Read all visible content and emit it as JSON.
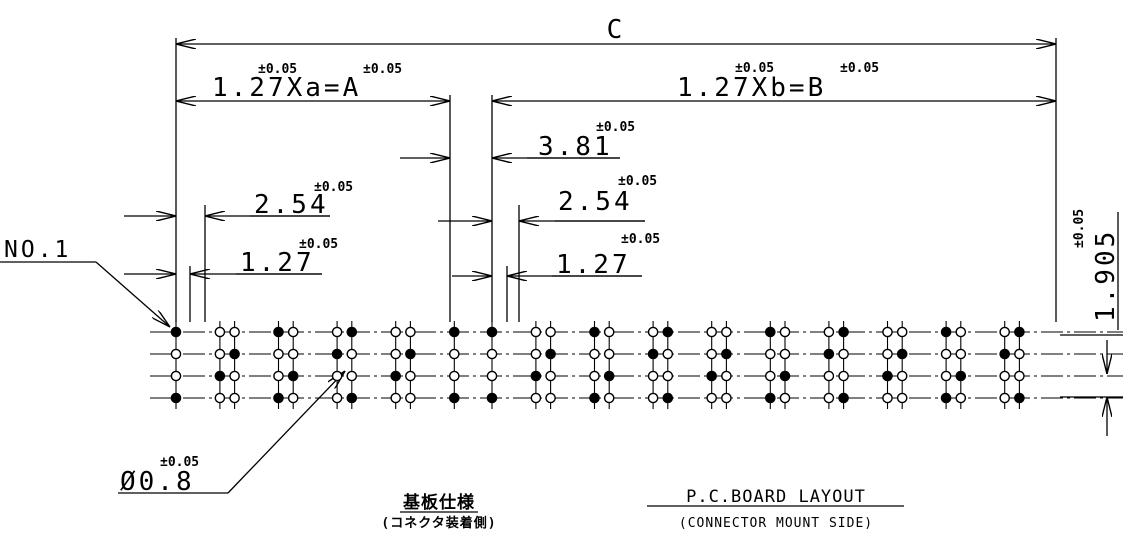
{
  "dimensions": {
    "total_c": "C",
    "pitch_a": "1.27Xa=A",
    "pitch_a_tol_left": "±0.05",
    "pitch_a_tol_right": "±0.05",
    "pitch_b": "1.27Xb=B",
    "pitch_b_tol_left": "±0.05",
    "pitch_b_tol_right": "±0.05",
    "gap": "3.81",
    "gap_tol": "±0.05",
    "left_row_pitch": "2.54",
    "left_row_pitch_tol": "±0.05",
    "left_col_pitch": "1.27",
    "left_col_pitch_tol": "±0.05",
    "right_row_pitch": "2.54",
    "right_row_pitch_tol": "±0.05",
    "right_col_pitch": "1.27",
    "right_col_pitch_tol": "±0.05",
    "vertical_pitch": "1.905",
    "vertical_pitch_tol": "±0.05",
    "hole_diameter": "Ø0.8",
    "hole_diameter_tol": "±0.05",
    "pin_one": "NO.1"
  },
  "captions": {
    "jp_title": "基板仕様",
    "jp_subtitle": "(コネクタ装着側)",
    "en_title": "P.C.BOARD LAYOUT",
    "en_subtitle": "(CONNECTOR MOUNT SIDE)"
  },
  "colors": {
    "ink": "#000000",
    "paper": "#ffffff"
  }
}
